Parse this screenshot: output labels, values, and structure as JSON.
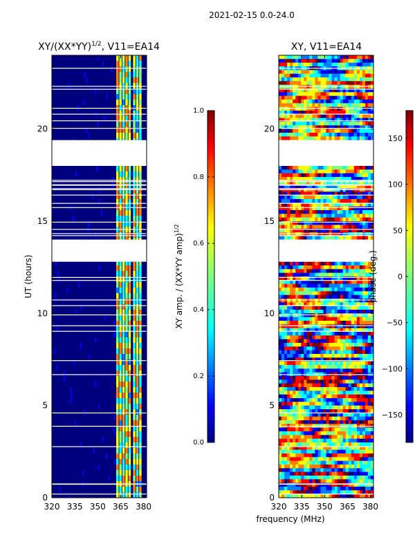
{
  "suptitle": "2021-02-15 0.0-24.0",
  "xlabel_shared": "frequency (MHz)",
  "colors": {
    "jet": [
      "#00007f",
      "#0000ff",
      "#007fff",
      "#00ffff",
      "#7fff7f",
      "#ffff00",
      "#ff7f00",
      "#ff0000",
      "#7f0000"
    ],
    "gap": "#ffffff",
    "axis": "#000000"
  },
  "panels": [
    {
      "title": "XY/(XX*YY)",
      "title_sup": "1/2",
      "title_rest": ", V11=EA14",
      "ylabel": "UT (hours)",
      "ylim": [
        0,
        24
      ],
      "xlim": [
        320,
        382
      ],
      "xticks": [
        320,
        335,
        350,
        365,
        380
      ],
      "yticks": [
        0,
        5,
        10,
        15,
        20
      ]
    },
    {
      "title": "XY, V11=EA14",
      "ylim": [
        0,
        24
      ],
      "xlim": [
        320,
        382
      ],
      "xticks": [
        320,
        335,
        350,
        365,
        380
      ],
      "yticks": [
        0,
        5,
        10,
        15,
        20
      ]
    }
  ],
  "colorbars": [
    {
      "label_main": "XY amp. / (XX*YY amp)",
      "label_sup": "1/2",
      "range": [
        0.0,
        1.0
      ],
      "ticks": [
        "0.0",
        "0.2",
        "0.4",
        "0.6",
        "0.8",
        "1.0"
      ]
    },
    {
      "label": "phase (deg.)",
      "range": [
        -180,
        180
      ],
      "ticks": [
        "−150",
        "−100",
        "−50",
        "0",
        "50",
        "100",
        "150"
      ],
      "tick_values": [
        -150,
        -100,
        -50,
        0,
        50,
        100,
        150
      ]
    }
  ],
  "chart_data": [
    {
      "type": "heatmap",
      "title": "XY/(XX*YY)^1/2, V11=EA14",
      "xlabel": "frequency (MHz)",
      "ylabel": "UT (hours)",
      "xlim": [
        320,
        382
      ],
      "ylim": [
        0,
        24
      ],
      "vrange": [
        0.0,
        1.0
      ],
      "bright_channels_MHz": [
        363,
        365,
        367,
        369,
        371,
        374,
        376,
        378
      ],
      "data_gaps_hours": [
        [
          12.8,
          14.0
        ],
        [
          18.0,
          19.4
        ]
      ]
    },
    {
      "type": "heatmap",
      "title": "XY, V11=EA14",
      "xlabel": "frequency (MHz)",
      "ylabel": "",
      "xlim": [
        320,
        382
      ],
      "ylim": [
        0,
        24
      ],
      "vrange": [
        -180,
        180
      ],
      "data_gaps_hours": [
        [
          12.8,
          14.0
        ],
        [
          18.0,
          19.4
        ]
      ]
    }
  ]
}
